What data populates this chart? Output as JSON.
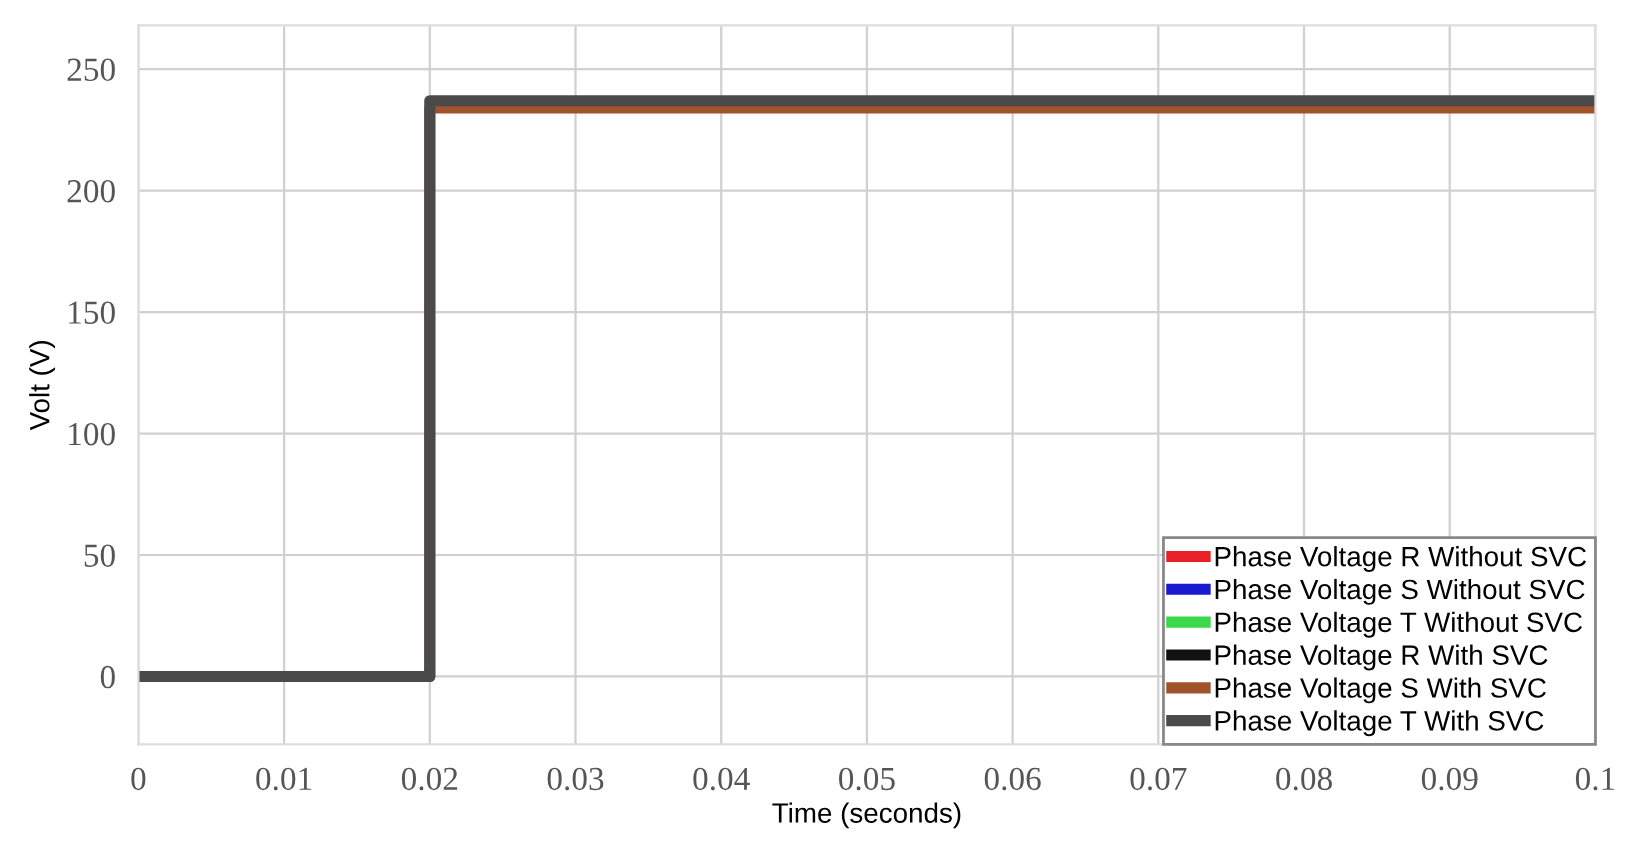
{
  "chart_data": {
    "type": "line",
    "xlabel": "Time (seconds)",
    "ylabel": "Volt (V)",
    "xlim": [
      0,
      0.1
    ],
    "ylim": [
      -28,
      268
    ],
    "xticks": [
      0,
      0.01,
      0.02,
      0.03,
      0.04,
      0.05,
      0.06,
      0.07,
      0.08,
      0.09,
      0.1
    ],
    "yticks": [
      0,
      50,
      100,
      150,
      200,
      250
    ],
    "x": [
      0,
      0.02,
      0.02,
      0.1
    ],
    "series": [
      {
        "name": "Phase Voltage R Without SVC",
        "color": "#e8202a",
        "values": [
          null,
          null,
          null,
          null
        ]
      },
      {
        "name": "Phase Voltage S Without SVC",
        "color": "#1a1ad0",
        "values": [
          null,
          null,
          null,
          null
        ]
      },
      {
        "name": "Phase Voltage T Without SVC",
        "color": "#3ad84a",
        "values": [
          null,
          null,
          null,
          null
        ]
      },
      {
        "name": "Phase Voltage R With SVC",
        "color": "#111111",
        "values": [
          null,
          null,
          null,
          null
        ]
      },
      {
        "name": "Phase Voltage S With SVC",
        "color": "#a0522d",
        "values": [
          0,
          0,
          234,
          234
        ]
      },
      {
        "name": "Phase Voltage T With SVC",
        "color": "#4a4a4a",
        "values": [
          0,
          0,
          237,
          237
        ]
      }
    ],
    "grid": true,
    "legend": "bottom right",
    "line_style": "solid"
  }
}
